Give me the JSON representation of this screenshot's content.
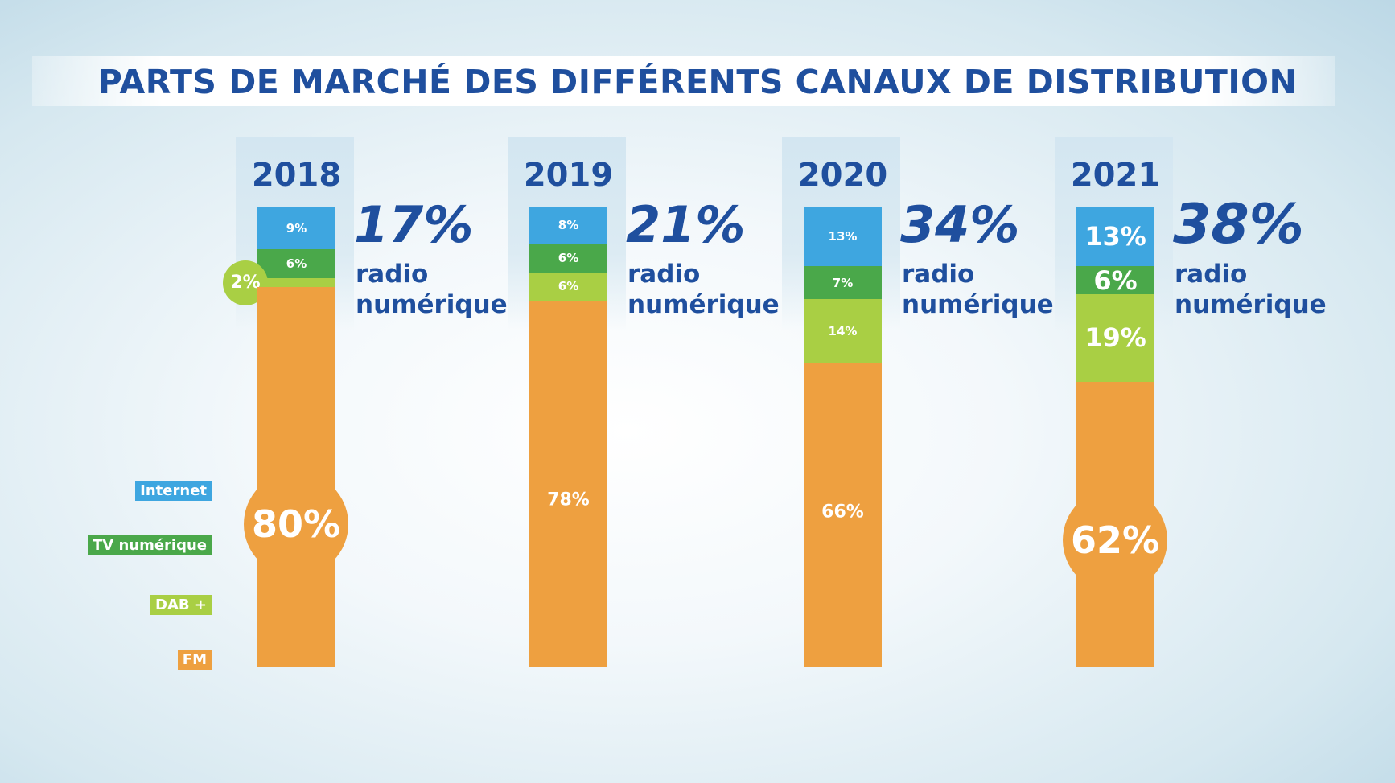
{
  "chart_data": {
    "type": "stacked-bar",
    "title": "PARTS DE MARCHÉ DES DIFFÉRENTS CANAUX DE DISTRIBUTION",
    "categories": [
      "2018",
      "2019",
      "2020",
      "2021"
    ],
    "series": [
      {
        "name": "Internet",
        "color": "#3ea6e0",
        "values": [
          9,
          8,
          13,
          13
        ],
        "labels": [
          "9%",
          "8%",
          "13%",
          "13%"
        ]
      },
      {
        "name": "TV numérique",
        "color": "#4aa84a",
        "values": [
          6,
          6,
          7,
          6
        ],
        "labels": [
          "6%",
          "6%",
          "7%",
          "6%"
        ]
      },
      {
        "name": "DAB +",
        "color": "#a9cf44",
        "values": [
          2,
          6,
          14,
          19
        ],
        "labels": [
          "2%",
          "6%",
          "14%",
          "19%"
        ]
      },
      {
        "name": "FM",
        "color": "#eea040",
        "values": [
          80,
          78,
          66,
          62
        ],
        "labels": [
          "80%",
          "78%",
          "66%",
          "62%"
        ]
      }
    ],
    "totals": [
      {
        "value": "17%",
        "text1": "radio",
        "text2": "numérique"
      },
      {
        "value": "21%",
        "text1": "radio",
        "text2": "numérique"
      },
      {
        "value": "34%",
        "text1": "radio",
        "text2": "numérique"
      },
      {
        "value": "38%",
        "text1": "radio",
        "text2": "numérique"
      }
    ],
    "legend_position": "bottom-left",
    "grid": false
  }
}
